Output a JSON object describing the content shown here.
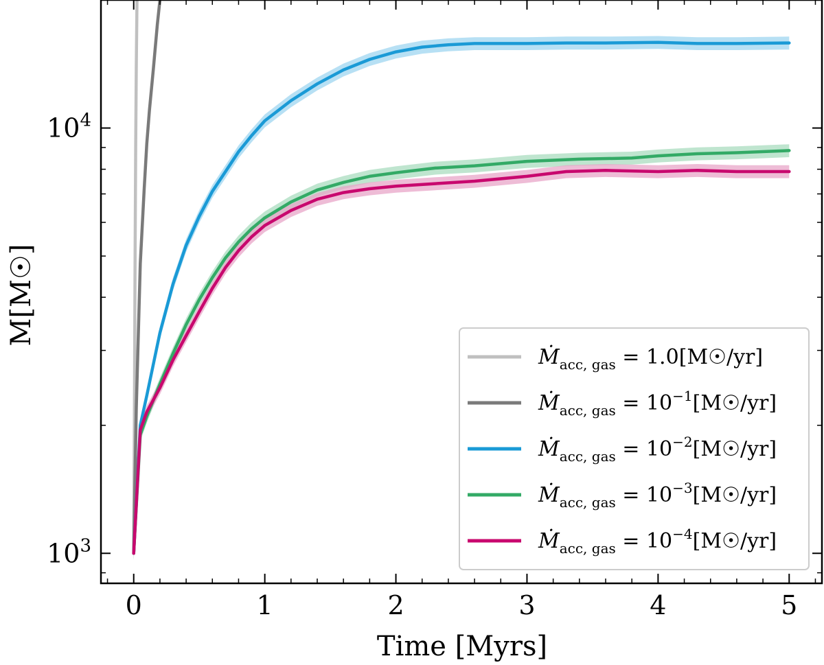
{
  "chart_data": {
    "type": "line",
    "xlabel": "Time [Myrs]",
    "ylabel": "M[M☉]",
    "xlim": [
      -0.25,
      5.25
    ],
    "ylim": [
      850,
      20000
    ],
    "yscale": "log",
    "x_ticks": [
      "0",
      "1",
      "2",
      "3",
      "4",
      "5"
    ],
    "x_tick_values": [
      0,
      1,
      2,
      3,
      4,
      5
    ],
    "y_ticks": [
      {
        "value": 1000,
        "base": "10",
        "exp": "3"
      },
      {
        "value": 10000,
        "base": "10",
        "exp": "4"
      }
    ],
    "legend_position": "lower-right",
    "series": [
      {
        "name": "Ṁacc,gas = 1.0[M☉/yr]",
        "legend": {
          "lhs": "Ṁ",
          "sub": "acc, gas",
          "eq": " = ",
          "coef": "1.0",
          "exp": "",
          "units": "[M☉/yr]"
        },
        "color": "#c0c0c0",
        "band": false,
        "points": [
          [
            0.0,
            1000
          ],
          [
            0.005,
            2000
          ],
          [
            0.01,
            4500
          ],
          [
            0.015,
            9000
          ],
          [
            0.02,
            14000
          ],
          [
            0.025,
            20000
          ]
        ]
      },
      {
        "name": "Ṁacc,gas = 10^-1[M☉/yr]",
        "legend": {
          "lhs": "Ṁ",
          "sub": "acc, gas",
          "eq": " = ",
          "coef": "10",
          "exp": "−1",
          "units": "[M☉/yr]"
        },
        "color": "#7a7a7a",
        "band": false,
        "points": [
          [
            0.0,
            1000
          ],
          [
            0.02,
            2200
          ],
          [
            0.05,
            4800
          ],
          [
            0.08,
            7200
          ],
          [
            0.1,
            9200
          ],
          [
            0.12,
            11000
          ],
          [
            0.15,
            13800
          ],
          [
            0.18,
            17500
          ],
          [
            0.2,
            20000
          ]
        ]
      },
      {
        "name": "Ṁacc,gas = 10^-2[M☉/yr]",
        "legend": {
          "lhs": "Ṁ",
          "sub": "acc, gas",
          "eq": " = ",
          "coef": "10",
          "exp": "−2",
          "units": "[M☉/yr]"
        },
        "color": "#1a9ad6",
        "band_color": "#9fd6f0",
        "band": true,
        "band_frac": 0.035,
        "points": [
          [
            0.0,
            1000
          ],
          [
            0.05,
            2000
          ],
          [
            0.1,
            2350
          ],
          [
            0.2,
            3300
          ],
          [
            0.3,
            4300
          ],
          [
            0.4,
            5300
          ],
          [
            0.5,
            6200
          ],
          [
            0.6,
            7100
          ],
          [
            0.7,
            7900
          ],
          [
            0.8,
            8800
          ],
          [
            0.9,
            9600
          ],
          [
            1.0,
            10400
          ],
          [
            1.2,
            11600
          ],
          [
            1.4,
            12700
          ],
          [
            1.6,
            13700
          ],
          [
            1.8,
            14500
          ],
          [
            2.0,
            15100
          ],
          [
            2.2,
            15500
          ],
          [
            2.4,
            15700
          ],
          [
            2.6,
            15800
          ],
          [
            2.8,
            15800
          ],
          [
            3.0,
            15800
          ],
          [
            3.3,
            15850
          ],
          [
            3.6,
            15850
          ],
          [
            4.0,
            15900
          ],
          [
            4.3,
            15800
          ],
          [
            4.6,
            15800
          ],
          [
            5.0,
            15850
          ]
        ]
      },
      {
        "name": "Ṁacc,gas = 10^-3[M☉/yr]",
        "legend": {
          "lhs": "Ṁ",
          "sub": "acc, gas",
          "eq": " = ",
          "coef": "10",
          "exp": "−3",
          "units": "[M☉/yr]"
        },
        "color": "#33aa66",
        "band_color": "#a9dcbf",
        "band": true,
        "band_frac": 0.035,
        "points": [
          [
            0.0,
            1000
          ],
          [
            0.05,
            1900
          ],
          [
            0.1,
            2100
          ],
          [
            0.2,
            2500
          ],
          [
            0.3,
            2950
          ],
          [
            0.4,
            3450
          ],
          [
            0.5,
            3950
          ],
          [
            0.6,
            4450
          ],
          [
            0.7,
            4950
          ],
          [
            0.8,
            5400
          ],
          [
            0.9,
            5800
          ],
          [
            1.0,
            6150
          ],
          [
            1.2,
            6700
          ],
          [
            1.4,
            7150
          ],
          [
            1.6,
            7450
          ],
          [
            1.8,
            7700
          ],
          [
            2.0,
            7850
          ],
          [
            2.3,
            8050
          ],
          [
            2.6,
            8150
          ],
          [
            3.0,
            8350
          ],
          [
            3.4,
            8450
          ],
          [
            3.8,
            8500
          ],
          [
            4.0,
            8600
          ],
          [
            4.3,
            8700
          ],
          [
            4.6,
            8750
          ],
          [
            5.0,
            8850
          ]
        ]
      },
      {
        "name": "Ṁacc,gas = 10^-4[M☉/yr]",
        "legend": {
          "lhs": "Ṁ",
          "sub": "acc, gas",
          "eq": " = ",
          "coef": "10",
          "exp": "−4",
          "units": "[M☉/yr]"
        },
        "color": "#c8086e",
        "band_color": "#e8a6c8",
        "band": true,
        "band_frac": 0.035,
        "points": [
          [
            0.0,
            1000
          ],
          [
            0.05,
            1950
          ],
          [
            0.1,
            2150
          ],
          [
            0.2,
            2450
          ],
          [
            0.3,
            2850
          ],
          [
            0.4,
            3250
          ],
          [
            0.5,
            3700
          ],
          [
            0.6,
            4200
          ],
          [
            0.7,
            4700
          ],
          [
            0.8,
            5150
          ],
          [
            0.9,
            5550
          ],
          [
            1.0,
            5900
          ],
          [
            1.2,
            6400
          ],
          [
            1.4,
            6800
          ],
          [
            1.6,
            7050
          ],
          [
            1.8,
            7200
          ],
          [
            2.0,
            7300
          ],
          [
            2.3,
            7400
          ],
          [
            2.6,
            7500
          ],
          [
            3.0,
            7700
          ],
          [
            3.3,
            7900
          ],
          [
            3.6,
            7950
          ],
          [
            4.0,
            7900
          ],
          [
            4.3,
            7950
          ],
          [
            4.6,
            7900
          ],
          [
            5.0,
            7900
          ]
        ]
      }
    ]
  }
}
